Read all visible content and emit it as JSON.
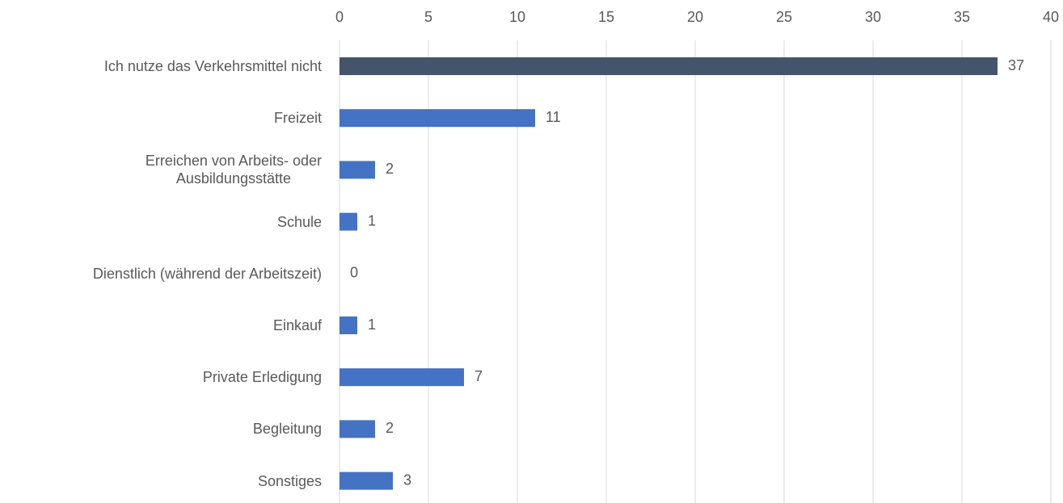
{
  "chart_data": {
    "type": "hbar",
    "categories": [
      "Ich nutze das Verkehrsmittel nicht",
      "Freizeit",
      "Erreichen von Arbeits- oder\nAusbildungsstätte",
      "Schule",
      "Dienstlich (während der Arbeitszeit)",
      "Einkauf",
      "Private Erledigung",
      "Begleitung",
      "Sonstiges"
    ],
    "values": [
      37,
      11,
      2,
      1,
      0,
      1,
      7,
      2,
      3
    ],
    "colors": [
      "#44546a",
      "#4472c4",
      "#4472c4",
      "#4472c4",
      "#4472c4",
      "#4472c4",
      "#4472c4",
      "#4472c4",
      "#4472c4"
    ],
    "xlim": [
      0,
      40
    ],
    "xticks": [
      0,
      5,
      10,
      15,
      20,
      25,
      30,
      35,
      40
    ],
    "grid": true
  }
}
